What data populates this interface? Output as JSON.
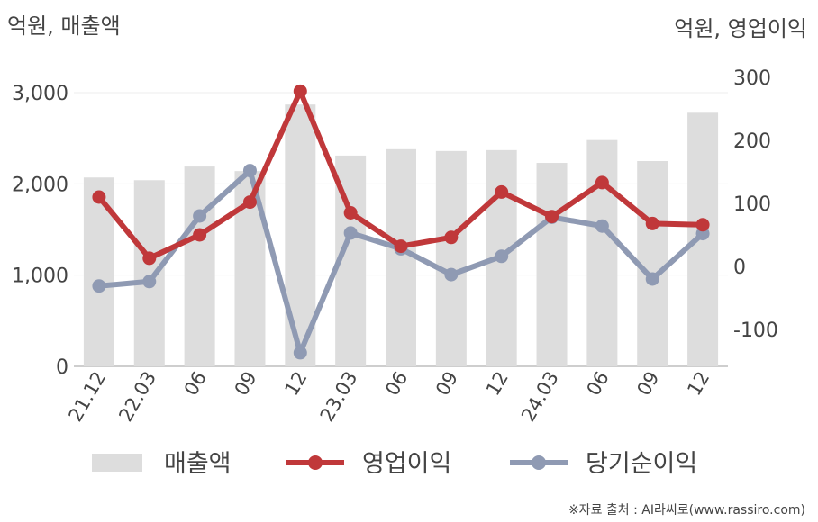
{
  "chart_data": {
    "type": "bar+line",
    "left_axis_label": "억원, 매출액",
    "right_axis_label": "억원, 영업이익",
    "categories": [
      "21.12",
      "22.03",
      "06",
      "09",
      "12",
      "23.03",
      "06",
      "09",
      "12",
      "24.03",
      "06",
      "09",
      "12"
    ],
    "left_axis": {
      "ylim": [
        0,
        3000
      ],
      "ticks": [
        "0",
        "1,000",
        "2,000",
        "3,000"
      ]
    },
    "right_axis": {
      "ylim": [
        -100,
        300
      ],
      "ticks": [
        "-100",
        "0",
        "100",
        "200",
        "300"
      ]
    },
    "series": [
      {
        "name": "매출액",
        "type": "bar",
        "axis": "left",
        "color": "#dddddd",
        "values": [
          2070,
          2040,
          2190,
          2140,
          2870,
          2310,
          2380,
          2360,
          2370,
          2230,
          2480,
          2250,
          2780
        ]
      },
      {
        "name": "영업이익",
        "type": "line",
        "axis": "right",
        "color": "#c0383a",
        "values": [
          110,
          13,
          50,
          102,
          278,
          85,
          32,
          46,
          118,
          79,
          133,
          68,
          66
        ]
      },
      {
        "name": "당기순이익",
        "type": "line",
        "axis": "right",
        "color": "#8f9ab3",
        "values": [
          -31,
          -24,
          80,
          152,
          -137,
          53,
          28,
          -13,
          16,
          78,
          64,
          -20,
          52
        ]
      }
    ],
    "legend_position": "bottom",
    "grid": true
  },
  "source": "※자료 출처 : AI라씨로(www.rassiro.com)"
}
